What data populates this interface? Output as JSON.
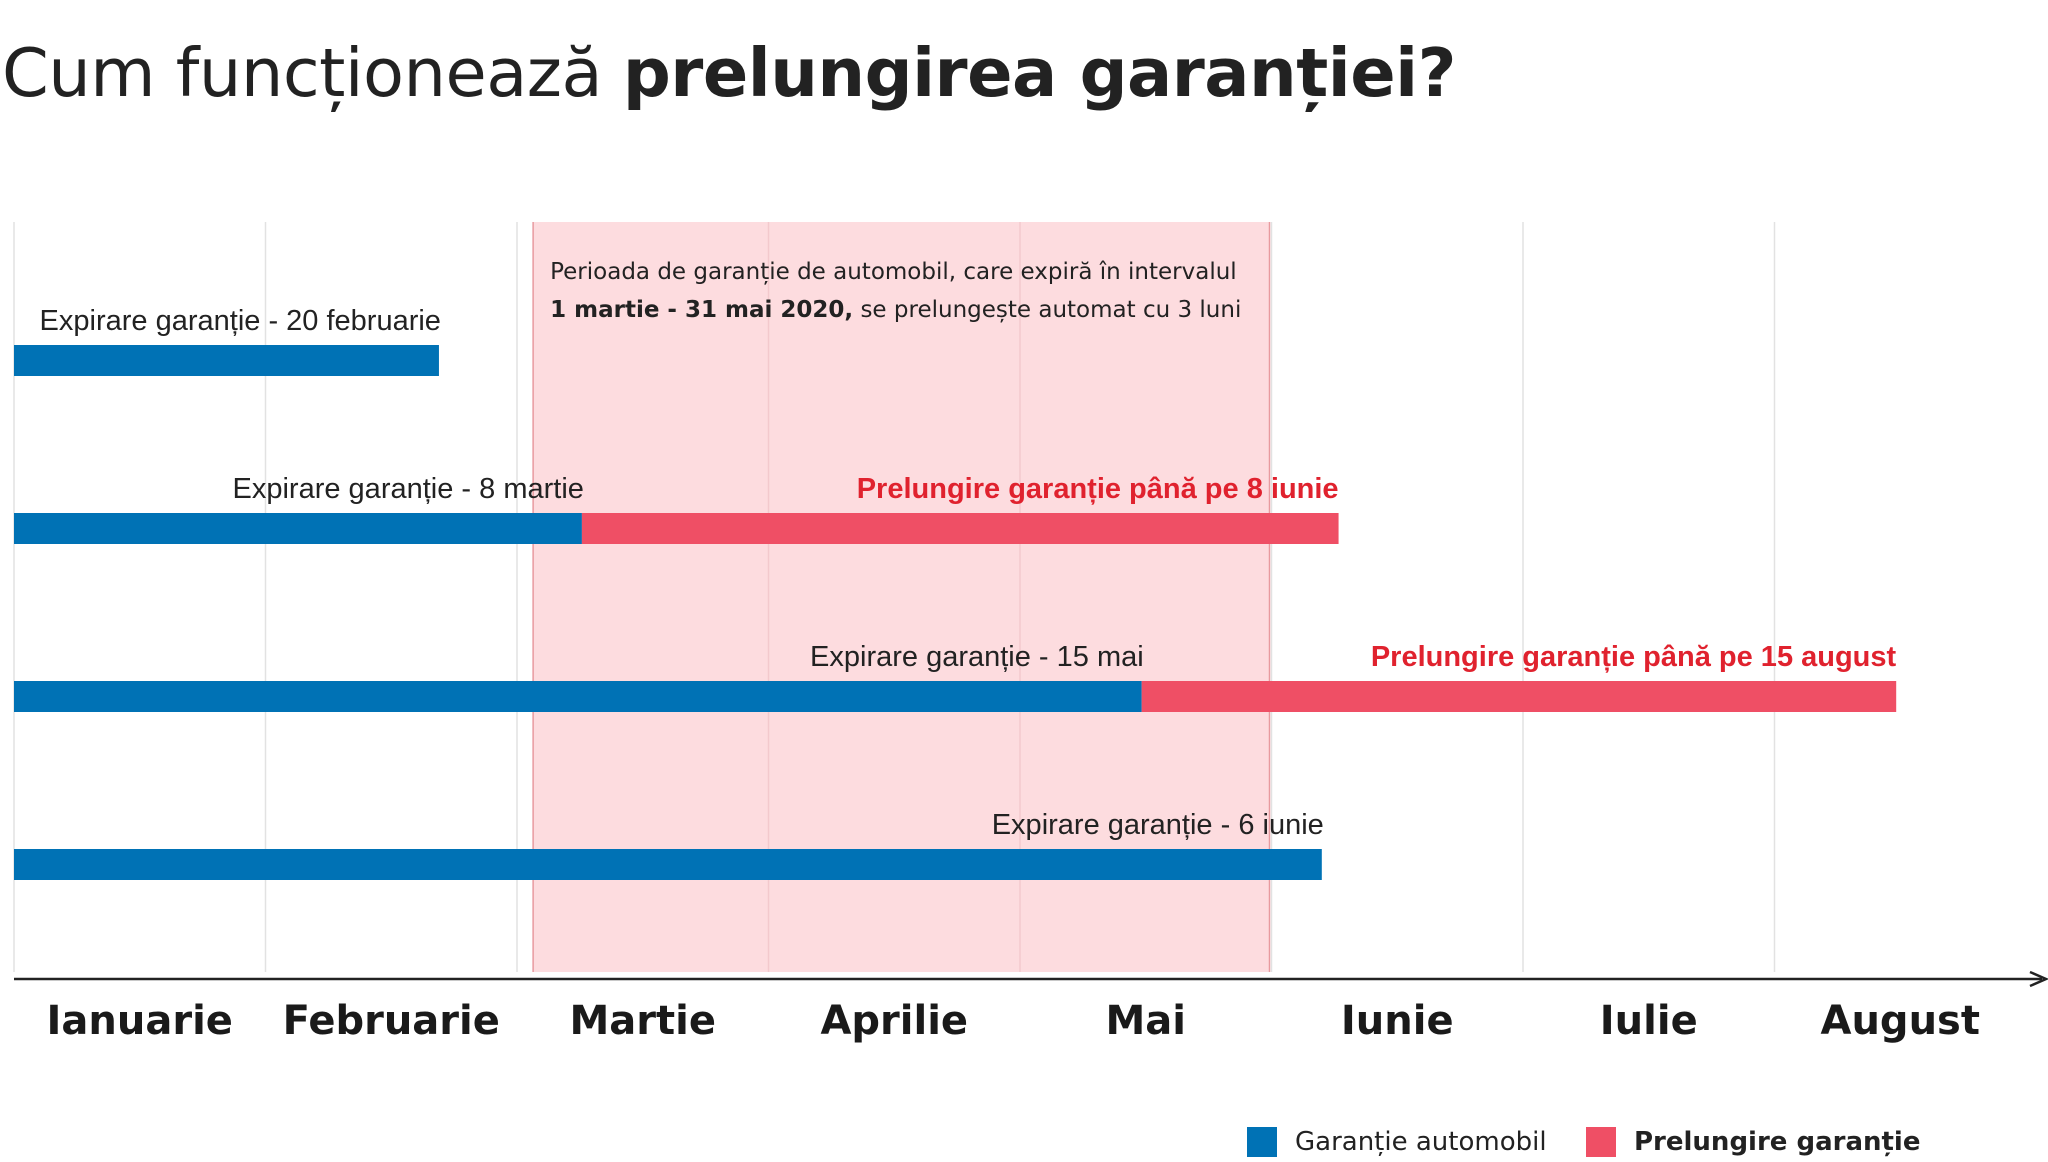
{
  "title": {
    "light": "Cum funcționează",
    "bold": "prelungirea garanției?"
  },
  "colors": {
    "warranty": "#0072b5",
    "extension": "#ef4f65",
    "band": "#fddcdf",
    "band_edge": "#e89a9f",
    "extension_text": "#e0222e",
    "grid": "#e2e2e2",
    "axis": "#222222"
  },
  "chart_data": {
    "type": "timeline",
    "x_categories": [
      "Ianuarie",
      "Februarie",
      "Martie",
      "Aprilie",
      "Mai",
      "Iunie",
      "Iulie",
      "August"
    ],
    "highlight_period": {
      "start": "2020-03-01",
      "end": "2020-05-31",
      "text_line1": "Perioada de garanție de automobil, care expiră în intervalul",
      "text_line2_bold": "1 martie - 31 mai 2020,",
      "text_line2_rest": " se prelungește automat cu 3 luni"
    },
    "rows": [
      {
        "expiry": "2020-02-20",
        "expiry_label": "Expirare garanție - 20 februarie"
      },
      {
        "expiry": "2020-03-08",
        "expiry_label": "Expirare garanție - 8 martie",
        "extended_to": "2020-06-08",
        "extension_label": "Prelungire garanție până pe 8 iunie"
      },
      {
        "expiry": "2020-05-15",
        "expiry_label": "Expirare garanție - 15 mai",
        "extended_to": "2020-08-15",
        "extension_label": "Prelungire garanție până pe 15 august"
      },
      {
        "expiry": "2020-06-06",
        "expiry_label": "Expirare garanție - 6 iunie"
      }
    ],
    "legend": [
      {
        "label": "Garanție automobil",
        "color": "#0072b5"
      },
      {
        "label": "Prelungire garanție",
        "color": "#ef4f65"
      }
    ]
  }
}
